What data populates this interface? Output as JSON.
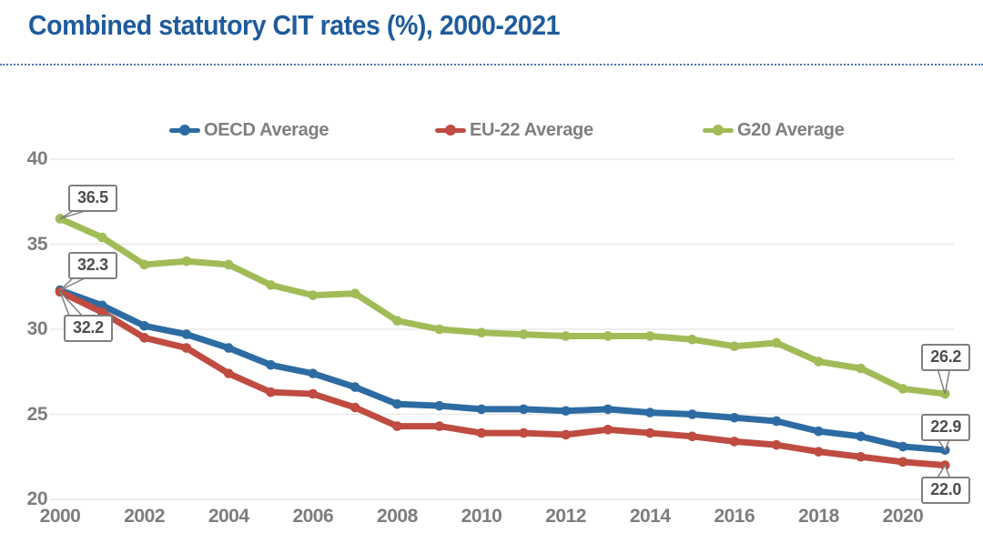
{
  "title": "Combined statutory CIT rates (%), 2000-2021",
  "colors": {
    "title": "#1e5b9c",
    "divider": "#4a77b3",
    "axis_text": "#7d7d7d",
    "legend_text": "#7f7f7f",
    "grid": "#e9e9e9",
    "callout_border": "#7f7f7f",
    "callout_text": "#4d4d4d",
    "oecd_blue": "#2d6ba3",
    "eu22_red": "#bf4b41",
    "g20_green": "#a1bb57"
  },
  "legend": [
    {
      "label": "OECD Average",
      "color": "#2d6ba3",
      "marker": "line-dot-icon"
    },
    {
      "label": "EU-22 Average",
      "color": "#bf4b41",
      "marker": "line-dot-icon"
    },
    {
      "label": "G20 Average",
      "color": "#a1bb57",
      "marker": "line-dot-icon"
    }
  ],
  "chart_data": {
    "type": "line",
    "title": "Combined statutory CIT rates (%), 2000-2021",
    "xlabel": "",
    "ylabel": "",
    "x": [
      2000,
      2001,
      2002,
      2003,
      2004,
      2005,
      2006,
      2007,
      2008,
      2009,
      2010,
      2011,
      2012,
      2013,
      2014,
      2015,
      2016,
      2017,
      2018,
      2019,
      2020,
      2021
    ],
    "series": [
      {
        "name": "OECD Average",
        "color": "#2d6ba3",
        "values": [
          32.3,
          31.4,
          30.2,
          29.7,
          28.9,
          27.9,
          27.4,
          26.6,
          25.6,
          25.5,
          25.3,
          25.3,
          25.2,
          25.3,
          25.1,
          25.0,
          24.8,
          24.6,
          24.0,
          23.7,
          23.1,
          22.9
        ]
      },
      {
        "name": "EU-22 Average",
        "color": "#bf4b41",
        "values": [
          32.2,
          31.0,
          29.5,
          28.9,
          27.4,
          26.3,
          26.2,
          25.4,
          24.3,
          24.3,
          23.9,
          23.9,
          23.8,
          24.1,
          23.9,
          23.7,
          23.4,
          23.2,
          22.8,
          22.5,
          22.2,
          22.0
        ]
      },
      {
        "name": "G20 Average",
        "color": "#a1bb57",
        "values": [
          36.5,
          35.4,
          33.8,
          34.0,
          33.8,
          32.6,
          32.0,
          32.1,
          30.5,
          30.0,
          29.8,
          29.7,
          29.6,
          29.6,
          29.6,
          29.4,
          29.0,
          29.2,
          28.1,
          27.7,
          26.5,
          26.2
        ]
      }
    ],
    "ylim": [
      20,
      40
    ],
    "yticks": [
      40,
      35,
      30,
      25,
      20
    ],
    "xticks": [
      2000,
      2002,
      2004,
      2006,
      2008,
      2010,
      2012,
      2014,
      2016,
      2018,
      2020
    ],
    "grid": "horizontal",
    "legend_position": "top",
    "annotations": [
      {
        "series": "G20 Average",
        "year": 2000,
        "text": "36.5",
        "placement": "above"
      },
      {
        "series": "OECD Average",
        "year": 2000,
        "text": "32.3",
        "placement": "above"
      },
      {
        "series": "EU-22 Average",
        "year": 2000,
        "text": "32.2",
        "placement": "below"
      },
      {
        "series": "G20 Average",
        "year": 2021,
        "text": "26.2",
        "placement": "above"
      },
      {
        "series": "OECD Average",
        "year": 2021,
        "text": "22.9",
        "placement": "above"
      },
      {
        "series": "EU-22 Average",
        "year": 2021,
        "text": "22.0",
        "placement": "below"
      }
    ]
  }
}
